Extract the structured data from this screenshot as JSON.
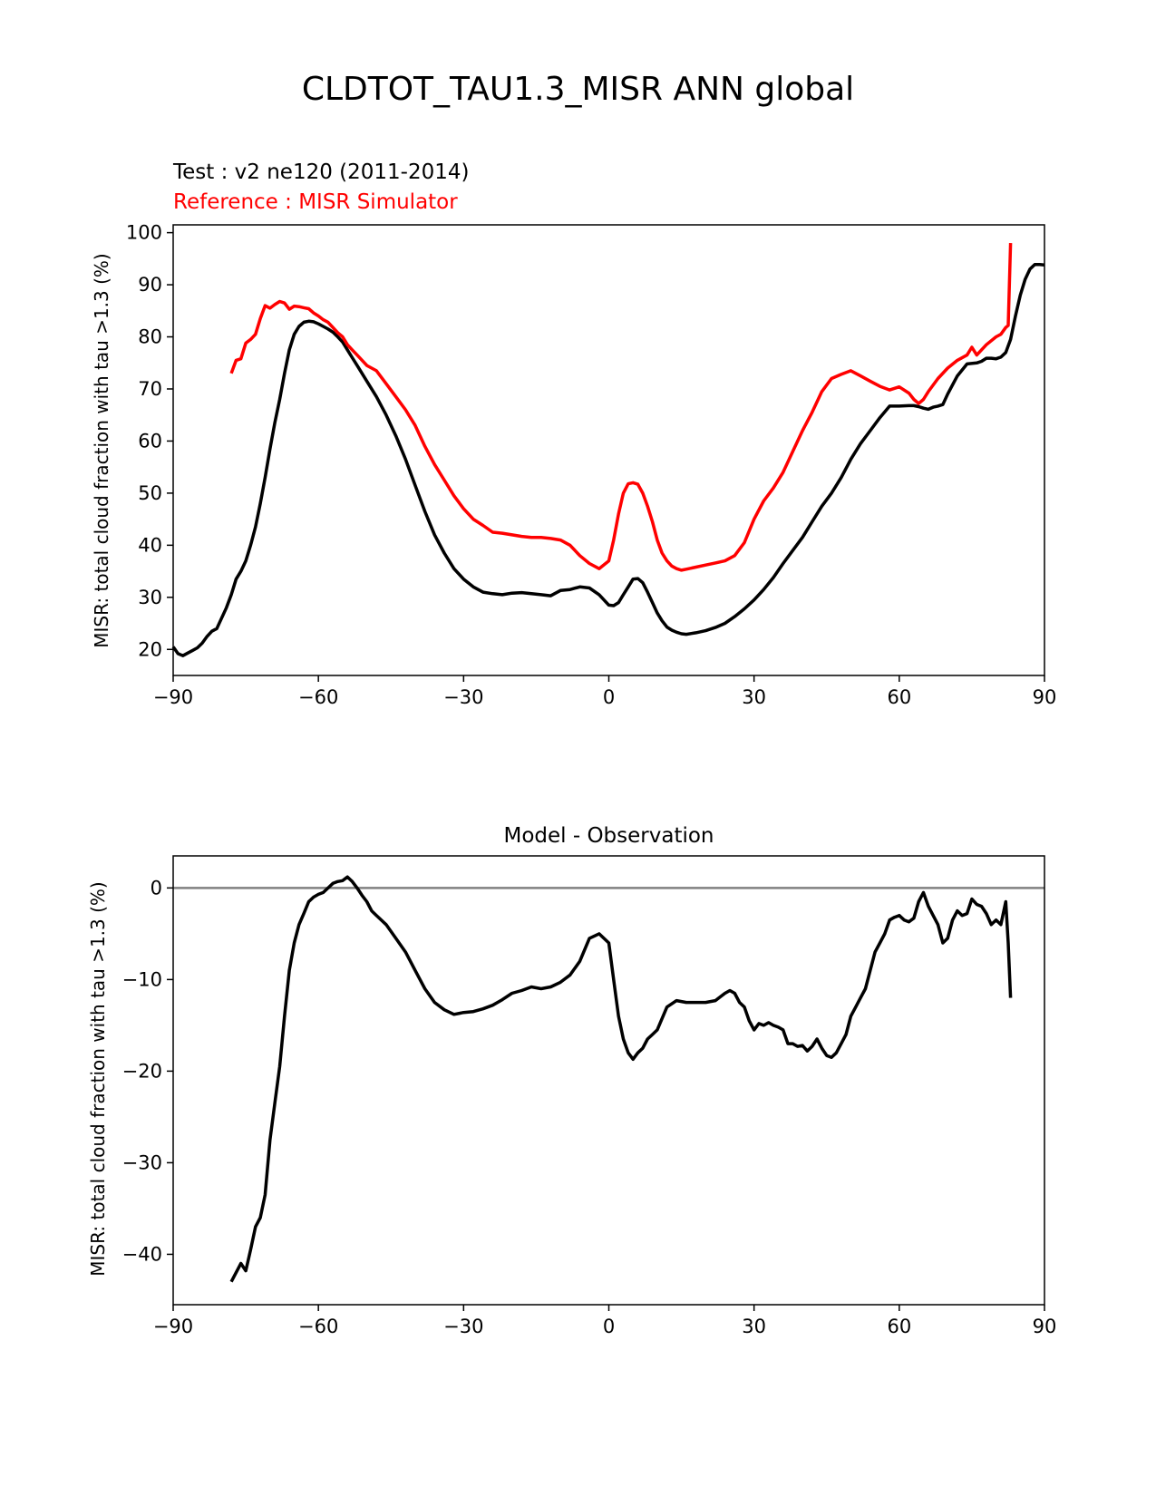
{
  "figure": {
    "suptitle": "CLDTOT_TAU1.3_MISR ANN global"
  },
  "colors": {
    "test": "#000000",
    "reference": "#ff0000",
    "zero_line": "#808080"
  },
  "chart_data": [
    {
      "type": "line",
      "test_label": "Test : v2 ne120 (2011-2014)",
      "reference_label": "Reference : MISR Simulator",
      "xlabel": "",
      "ylabel": "MISR: total cloud fraction with tau >1.3 (%)",
      "xlim": [
        -90,
        90
      ],
      "ylim": [
        15,
        101.5
      ],
      "xticks": [
        -90,
        -60,
        -30,
        0,
        30,
        60,
        90
      ],
      "xtick_labels": [
        "−90",
        "−60",
        "−30",
        "0",
        "30",
        "60",
        "90"
      ],
      "yticks": [
        20,
        30,
        40,
        50,
        60,
        70,
        80,
        90,
        100
      ],
      "ytick_labels": [
        "20",
        "30",
        "40",
        "50",
        "60",
        "70",
        "80",
        "90",
        "100"
      ],
      "series": [
        {
          "name": "Test",
          "color": "#000000",
          "x": [
            -90,
            -89,
            -88,
            -87,
            -86,
            -85,
            -84,
            -83,
            -82,
            -81,
            -80,
            -79,
            -78,
            -77,
            -76,
            -75,
            -74,
            -73,
            -72,
            -71,
            -70,
            -69,
            -68,
            -67,
            -66,
            -65,
            -64,
            -63,
            -62,
            -61,
            -60,
            -59,
            -58,
            -57,
            -56,
            -55,
            -54,
            -53,
            -52,
            -50,
            -48,
            -46,
            -44,
            -42,
            -40,
            -38,
            -36,
            -34,
            -32,
            -30,
            -28,
            -26,
            -24,
            -22,
            -20,
            -18,
            -16,
            -14,
            -12,
            -10,
            -8,
            -6,
            -4,
            -2,
            0,
            1,
            2,
            3,
            4,
            5,
            6,
            7,
            8,
            9,
            10,
            11,
            12,
            13,
            14,
            15,
            16,
            18,
            20,
            22,
            24,
            26,
            28,
            30,
            32,
            34,
            36,
            38,
            40,
            42,
            44,
            46,
            48,
            50,
            52,
            54,
            56,
            58,
            60,
            62,
            63,
            64,
            65,
            66,
            67,
            68,
            69,
            70,
            72,
            74,
            76,
            77,
            78,
            79,
            80,
            81,
            82,
            83,
            84,
            85,
            86,
            87,
            88,
            89,
            90
          ],
          "y": [
            20.5,
            19.2,
            18.8,
            19.3,
            19.8,
            20.3,
            21.2,
            22.5,
            23.5,
            24.0,
            26.0,
            28.0,
            30.5,
            33.5,
            35.0,
            37.0,
            40.0,
            43.5,
            48.0,
            53.0,
            58.5,
            63.5,
            68.0,
            73.0,
            77.5,
            80.5,
            82.0,
            82.8,
            83.0,
            82.9,
            82.5,
            82.0,
            81.5,
            80.9,
            80.0,
            79.0,
            77.5,
            76.0,
            74.5,
            71.5,
            68.5,
            65.0,
            61.0,
            56.5,
            51.5,
            46.5,
            42.0,
            38.5,
            35.5,
            33.5,
            32.0,
            31.0,
            30.7,
            30.5,
            30.8,
            30.9,
            30.7,
            30.5,
            30.3,
            31.3,
            31.5,
            32.0,
            31.8,
            30.5,
            28.5,
            28.4,
            29.0,
            30.5,
            32.0,
            33.5,
            33.6,
            32.8,
            31.0,
            29.0,
            27.0,
            25.5,
            24.3,
            23.7,
            23.3,
            23.0,
            22.9,
            23.2,
            23.6,
            24.2,
            25.0,
            26.3,
            27.8,
            29.5,
            31.5,
            33.8,
            36.5,
            39.0,
            41.5,
            44.5,
            47.5,
            50.0,
            53.0,
            56.5,
            59.5,
            62.0,
            64.5,
            66.7,
            66.7,
            66.8,
            66.8,
            66.6,
            66.3,
            66.1,
            66.5,
            66.7,
            67.0,
            69.0,
            72.5,
            74.8,
            75.0,
            75.3,
            75.9,
            75.9,
            75.8,
            76.1,
            77.0,
            79.5,
            84.0,
            88.0,
            91.0,
            93.0,
            93.9,
            93.9,
            93.8
          ]
        },
        {
          "name": "Reference",
          "color": "#ff0000",
          "x": [
            -78,
            -77,
            -76,
            -75,
            -74,
            -73,
            -72,
            -71,
            -70,
            -69,
            -68,
            -67,
            -66,
            -65,
            -64,
            -63,
            -62,
            -61,
            -60,
            -59,
            -58,
            -57,
            -56,
            -55,
            -54,
            -53,
            -52,
            -50,
            -48,
            -46,
            -44,
            -42,
            -40,
            -38,
            -36,
            -34,
            -32,
            -30,
            -28,
            -26,
            -24,
            -22,
            -20,
            -18,
            -16,
            -14,
            -12,
            -10,
            -8,
            -6,
            -4,
            -2,
            0,
            1,
            2,
            3,
            4,
            5,
            6,
            7,
            8,
            9,
            10,
            11,
            12,
            13,
            14,
            15,
            16,
            18,
            20,
            22,
            24,
            26,
            28,
            30,
            32,
            34,
            36,
            38,
            40,
            42,
            44,
            46,
            48,
            50,
            52,
            54,
            56,
            58,
            60,
            62,
            63,
            64,
            65,
            66,
            68,
            70,
            72,
            74,
            75,
            76,
            78,
            80,
            81,
            82,
            82.5,
            83
          ],
          "y": [
            73.0,
            75.5,
            75.8,
            78.8,
            79.5,
            80.5,
            83.5,
            86.0,
            85.5,
            86.2,
            86.8,
            86.5,
            85.3,
            85.9,
            85.8,
            85.6,
            85.4,
            84.6,
            84.0,
            83.3,
            82.8,
            81.8,
            80.8,
            80.0,
            78.5,
            77.5,
            76.5,
            74.5,
            73.5,
            71.0,
            68.5,
            66.0,
            63.0,
            59.0,
            55.5,
            52.5,
            49.5,
            47.0,
            45.0,
            43.8,
            42.5,
            42.3,
            42.0,
            41.7,
            41.5,
            41.5,
            41.3,
            41.0,
            40.0,
            38.0,
            36.5,
            35.5,
            37.0,
            41.0,
            46.0,
            50.0,
            51.8,
            52.0,
            51.7,
            50.0,
            47.5,
            44.5,
            41.0,
            38.5,
            37.0,
            36.0,
            35.5,
            35.2,
            35.4,
            35.8,
            36.2,
            36.6,
            37.0,
            38.0,
            40.5,
            45.0,
            48.5,
            51.0,
            54.0,
            58.0,
            62.0,
            65.5,
            69.5,
            72.0,
            72.8,
            73.5,
            72.5,
            71.5,
            70.5,
            69.8,
            70.4,
            69.2,
            68.0,
            67.2,
            68.0,
            69.5,
            72.0,
            74.0,
            75.5,
            76.5,
            78.0,
            76.5,
            78.5,
            80.0,
            80.5,
            81.8,
            82.2,
            98.0
          ]
        }
      ]
    },
    {
      "type": "line",
      "title": "Model - Observation",
      "xlabel": "",
      "ylabel": "MISR: total cloud fraction with tau >1.3 (%)",
      "xlim": [
        -90,
        90
      ],
      "ylim": [
        -45.5,
        3.5
      ],
      "xticks": [
        -90,
        -60,
        -30,
        0,
        30,
        60,
        90
      ],
      "xtick_labels": [
        "−90",
        "−60",
        "−30",
        "0",
        "30",
        "60",
        "90"
      ],
      "yticks": [
        0,
        -10,
        -20,
        -30,
        -40
      ],
      "ytick_labels": [
        "0",
        "−10",
        "−20",
        "−30",
        "−40"
      ],
      "zero_line": 0,
      "series": [
        {
          "name": "Model - Observation",
          "color": "#000000",
          "x": [
            -78,
            -77,
            -76,
            -75,
            -74,
            -73,
            -72,
            -71,
            -70,
            -69,
            -68,
            -67,
            -66,
            -65,
            -64,
            -63,
            -62,
            -61,
            -60,
            -59,
            -58,
            -57,
            -56,
            -55,
            -54,
            -53,
            -52,
            -51,
            -50,
            -49,
            -48,
            -46,
            -44,
            -42,
            -40,
            -38,
            -36,
            -34,
            -32,
            -30,
            -28,
            -26,
            -24,
            -22,
            -20,
            -18,
            -16,
            -14,
            -12,
            -10,
            -8,
            -6,
            -4,
            -2,
            0,
            1,
            2,
            3,
            4,
            5,
            6,
            7,
            8,
            9,
            10,
            12,
            14,
            16,
            18,
            20,
            22,
            24,
            25,
            26,
            27,
            28,
            29,
            30,
            31,
            32,
            33,
            34,
            35,
            36,
            37,
            38,
            39,
            40,
            41,
            42,
            43,
            44,
            45,
            46,
            47,
            48,
            49,
            50,
            51,
            52,
            53,
            54,
            55,
            56,
            57,
            58,
            59,
            60,
            61,
            62,
            63,
            64,
            65,
            66,
            67,
            68,
            69,
            70,
            71,
            72,
            73,
            74,
            75,
            76,
            77,
            78,
            79,
            80,
            81,
            82,
            82.5,
            83
          ],
          "y": [
            -43.0,
            -42.0,
            -41.0,
            -41.8,
            -39.5,
            -37.0,
            -36.0,
            -33.5,
            -27.5,
            -23.5,
            -19.5,
            -14.0,
            -9.0,
            -6.0,
            -4.0,
            -2.8,
            -1.5,
            -1.0,
            -0.7,
            -0.5,
            0.0,
            0.5,
            0.7,
            0.8,
            1.2,
            0.7,
            0.0,
            -0.8,
            -1.5,
            -2.5,
            -3.0,
            -4.0,
            -5.5,
            -7.0,
            -9.0,
            -11.0,
            -12.5,
            -13.3,
            -13.8,
            -13.6,
            -13.5,
            -13.2,
            -12.8,
            -12.2,
            -11.5,
            -11.2,
            -10.8,
            -11.0,
            -10.8,
            -10.3,
            -9.5,
            -8.0,
            -5.5,
            -5.0,
            -6.0,
            -10.0,
            -14.0,
            -16.5,
            -18.0,
            -18.7,
            -18.0,
            -17.5,
            -16.5,
            -16.0,
            -15.5,
            -13.0,
            -12.3,
            -12.5,
            -12.5,
            -12.5,
            -12.3,
            -11.5,
            -11.2,
            -11.5,
            -12.5,
            -13.0,
            -14.5,
            -15.5,
            -14.8,
            -15.0,
            -14.7,
            -15.0,
            -15.2,
            -15.5,
            -17.0,
            -17.0,
            -17.3,
            -17.2,
            -17.8,
            -17.3,
            -16.5,
            -17.5,
            -18.3,
            -18.5,
            -18.0,
            -17.0,
            -16.0,
            -14.0,
            -13.0,
            -12.0,
            -11.0,
            -9.0,
            -7.0,
            -6.0,
            -5.0,
            -3.5,
            -3.2,
            -3.0,
            -3.5,
            -3.7,
            -3.3,
            -1.5,
            -0.5,
            -2.0,
            -3.0,
            -4.0,
            -6.0,
            -5.5,
            -3.5,
            -2.5,
            -3.0,
            -2.8,
            -1.2,
            -1.8,
            -2.0,
            -2.8,
            -4.0,
            -3.5,
            -4.0,
            -1.5,
            -6.0,
            -12.0
          ]
        }
      ]
    }
  ]
}
